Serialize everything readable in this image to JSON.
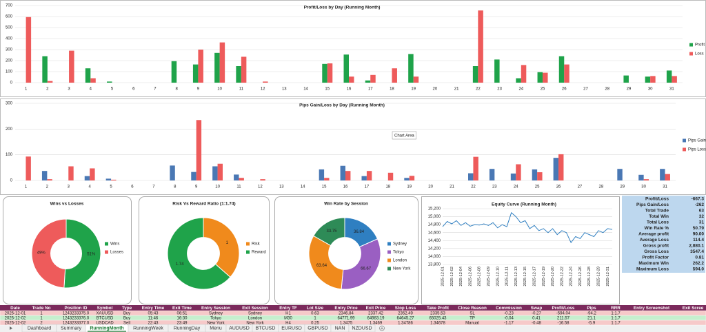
{
  "charts": [
    {
      "type": "bar",
      "title": "Profit/Loss by Day (Running Month)",
      "categories": [
        1,
        2,
        3,
        4,
        5,
        6,
        7,
        8,
        9,
        10,
        11,
        12,
        13,
        14,
        15,
        16,
        17,
        18,
        19,
        20,
        21,
        22,
        23,
        24,
        25,
        26,
        27,
        28,
        29,
        30,
        31
      ],
      "series": [
        {
          "name": "Profit",
          "color": "#1fa34a",
          "values": [
            0,
            240,
            0,
            130,
            10,
            0,
            0,
            195,
            165,
            270,
            150,
            0,
            0,
            0,
            170,
            255,
            20,
            0,
            260,
            0,
            0,
            150,
            210,
            40,
            95,
            240,
            0,
            0,
            65,
            55,
            110
          ]
        },
        {
          "name": "Loss",
          "color": "#ee5b5b",
          "values": [
            595,
            15,
            290,
            40,
            0,
            0,
            0,
            0,
            300,
            365,
            235,
            10,
            0,
            0,
            175,
            55,
            70,
            130,
            55,
            0,
            0,
            655,
            0,
            160,
            90,
            165,
            0,
            0,
            0,
            60,
            60
          ]
        }
      ],
      "ylim": [
        0,
        700
      ],
      "yticks": [
        0,
        100,
        200,
        300,
        400,
        500,
        600,
        700
      ],
      "grid": true,
      "legend": "right"
    },
    {
      "type": "bar",
      "title": "Pips Gain/Loss by Day (Running Month)",
      "categories": [
        1,
        2,
        3,
        4,
        5,
        6,
        7,
        8,
        9,
        10,
        11,
        12,
        13,
        14,
        15,
        16,
        17,
        18,
        19,
        20,
        21,
        22,
        23,
        24,
        25,
        26,
        27,
        28,
        29,
        30,
        31
      ],
      "series": [
        {
          "name": "Pips Gain",
          "color": "#4a78b4",
          "values": [
            0,
            37,
            0,
            17,
            7,
            0,
            0,
            58,
            33,
            55,
            23,
            0,
            0,
            0,
            43,
            57,
            17,
            0,
            10,
            0,
            0,
            28,
            45,
            27,
            43,
            88,
            0,
            0,
            45,
            22,
            45
          ]
        },
        {
          "name": "Pips Loss",
          "color": "#ee5b5b",
          "values": [
            93,
            5,
            55,
            47,
            3,
            0,
            0,
            0,
            235,
            65,
            10,
            5,
            0,
            0,
            10,
            37,
            37,
            30,
            18,
            0,
            0,
            92,
            0,
            63,
            32,
            102,
            0,
            0,
            0,
            5,
            25
          ]
        }
      ],
      "ylim": [
        0,
        300
      ],
      "yticks": [
        0,
        100,
        200,
        300
      ],
      "grid": true,
      "legend": "right"
    },
    {
      "type": "pie",
      "title": "Wins vs Losses",
      "categories": [
        "Wins",
        "Losses"
      ],
      "values": [
        51,
        49
      ],
      "value_labels": [
        "51%",
        "49%"
      ],
      "colors": [
        "#1fa34a",
        "#ee5b5b"
      ],
      "donut": true
    },
    {
      "type": "pie",
      "title": "Risk Vs Reward Ratio (1:1.74)",
      "categories": [
        "Risk",
        "Reward"
      ],
      "values": [
        1,
        1.74
      ],
      "colors": [
        "#f08a1c",
        "#1fa34a"
      ],
      "donut": true
    },
    {
      "type": "pie",
      "title": "Win Rate by Session",
      "categories": [
        "Sydney",
        "Tokyo",
        "London",
        "New York"
      ],
      "values": [
        36.84,
        66.67,
        63.64,
        33.75
      ],
      "colors": [
        "#2f7fc1",
        "#9a5fc2",
        "#f08a1c",
        "#2e8b57"
      ],
      "donut": true
    },
    {
      "type": "line",
      "title": "Equity Curve (Running Month)",
      "color": "#2f7fc1",
      "categories": [
        "2025-12-01",
        null,
        "2025-12-02",
        null,
        "2025-12-04",
        null,
        "2025-12-06",
        null,
        "2025-12-08",
        null,
        "2025-12-09",
        null,
        "2025-12-10",
        null,
        "2025-12-11",
        null,
        "2025-12-13",
        null,
        "2025-12-15",
        null,
        "2025-12-17",
        null,
        "2025-12-19",
        null,
        "2025-12-20",
        null,
        "2025-12-22",
        null,
        "2025-12-24",
        null,
        "2025-12-26",
        null,
        "2025-12-28",
        null,
        "2025-12-29",
        null,
        "2025-12-31",
        null
      ],
      "values": [
        14750,
        14880,
        14820,
        14900,
        14780,
        14850,
        14760,
        14800,
        14790,
        14820,
        14780,
        14850,
        14720,
        14800,
        14750,
        15100,
        15000,
        14850,
        14900,
        14700,
        14780,
        14650,
        14700,
        14600,
        14700,
        14550,
        14650,
        14600,
        14350,
        14500,
        14450,
        14600,
        14550,
        14500,
        14650,
        14600,
        14700,
        14680
      ],
      "ylim": [
        13800,
        15200
      ],
      "yticks": [
        {
          "value": 13800,
          "label": "13,800"
        },
        {
          "value": 14000,
          "label": "14,000"
        },
        {
          "value": 14200,
          "label": "14,200"
        },
        {
          "value": 14400,
          "label": "14,400"
        },
        {
          "value": 14600,
          "label": "14,600"
        },
        {
          "value": 14800,
          "label": "14,800"
        },
        {
          "value": 15000,
          "label": "15,000"
        },
        {
          "value": 15200,
          "label": "15,200"
        }
      ],
      "grid": true
    }
  ],
  "tooltip": "Chart Area",
  "stats": [
    {
      "label": "Profit/Loss",
      "value": "-667.3"
    },
    {
      "label": "Pips Gain/Loss",
      "value": "-262"
    },
    {
      "label": "Total Trade",
      "value": "63"
    },
    {
      "label": "Total Win",
      "value": "32"
    },
    {
      "label": "Total Loss",
      "value": "31"
    },
    {
      "label": "Win Rate %",
      "value": "50.79"
    },
    {
      "label": "Average profit",
      "value": "90.00"
    },
    {
      "label": "Average Loss",
      "value": "114.4"
    },
    {
      "label": "Gross profit",
      "value": "2,880.1"
    },
    {
      "label": "Gross Loss",
      "value": "3547.4"
    },
    {
      "label": "Profit Factor",
      "value": "0.81"
    },
    {
      "label": "Maximum Win",
      "value": "262.2"
    },
    {
      "label": "Maximum Loss",
      "value": "594.0"
    }
  ],
  "trades": {
    "columns": [
      "Date",
      "Trade No",
      "Position ID",
      "Symbol",
      "Type",
      "Entry Time",
      "Exit Time",
      "Entry Session",
      "Exit Session",
      "Entry TF",
      "Lot Size",
      "Entry Price",
      "Exit Price",
      "Stop Loss",
      "Take Profit",
      "Close Reason",
      "Commission",
      "Swap",
      "Profit/Loss",
      "Pips",
      "RRR",
      "Entry Screenshot",
      "Exit Scree"
    ],
    "rows": [
      [
        "2025-12-01",
        "1",
        "1243233375.0",
        "XAUUSD",
        "Buy",
        "05:43",
        "06:51",
        "Sydney",
        "Sydney",
        "H1",
        "0.63",
        "2346.84",
        "2337.42",
        "2352.49",
        "2335.53",
        "SL",
        "-0.23",
        "-0.27",
        "-594.04",
        "-94.2",
        "1:1.7",
        "",
        ""
      ],
      [
        "2025-12-02",
        "1",
        "1243233376.0",
        "BTCUSD",
        "Buy",
        "11:46",
        "16:30",
        "Tokyo",
        "London",
        "M30",
        "1",
        "64771.99",
        "64983.19",
        "64645.27",
        "65025.43",
        "TP",
        "-0.04",
        "0.41",
        "211.57",
        "21.1",
        "1:1.7",
        "",
        ""
      ],
      [
        "2025-12-02",
        "2",
        "1243233377.0",
        "USDCAD",
        "Sell",
        "22:43",
        "23:49",
        "New York",
        "New York",
        "H4",
        "0.25",
        "1.3475",
        "1.3469",
        "1.34786",
        "1.34678",
        "Manual",
        "-1.17",
        "-0.48",
        "-16.58",
        "-5.9",
        "1:1.7",
        "",
        ""
      ]
    ],
    "row_colors": [
      "#f6c9c9",
      "#c6efce",
      "#f6c9c9"
    ]
  },
  "tabs": [
    "Dashboard",
    "Summary",
    "RunningMonth",
    "RunningWeek",
    "RunningDay",
    "Menu",
    "AUDUSD",
    "BTCUSD",
    "EURUSD",
    "GBPUSD",
    "NAN",
    "NZDUSD"
  ],
  "active_tab": 2
}
